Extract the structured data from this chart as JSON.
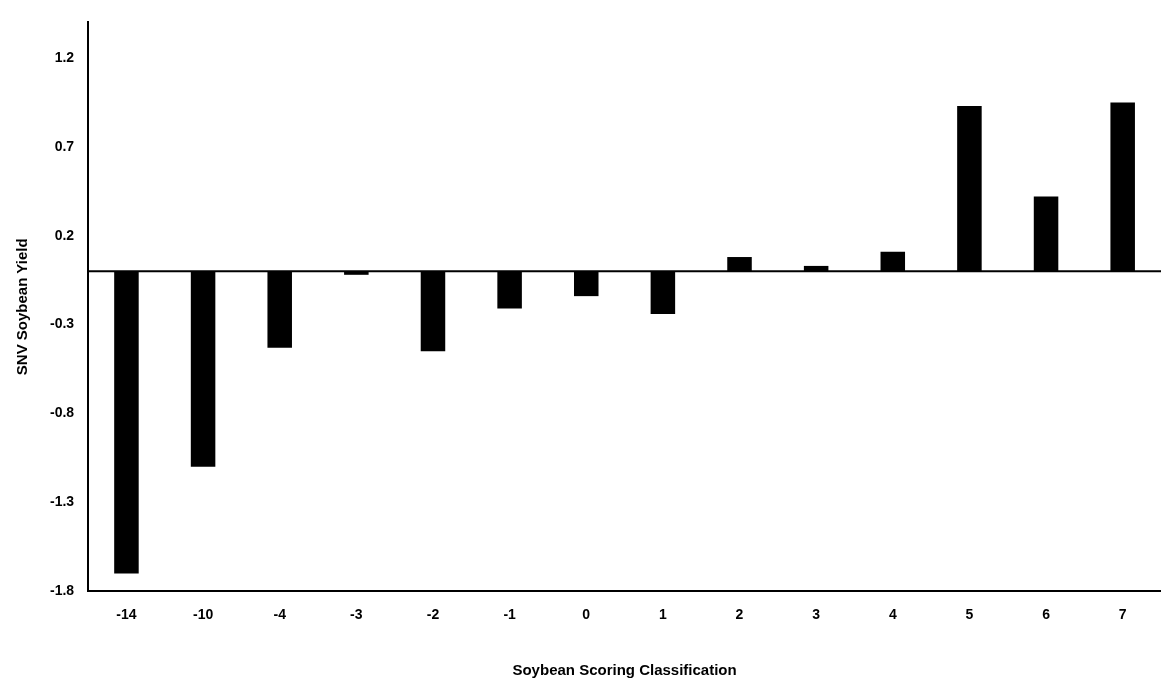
{
  "chart_data": {
    "type": "bar",
    "xlabel": "Soybean Scoring Classification",
    "ylabel": "SNV Soybean Yield",
    "categories": [
      "-14",
      "-10",
      "-4",
      "-3",
      "-2",
      "-1",
      "0",
      "1",
      "2",
      "3",
      "4",
      "5",
      "6",
      "7"
    ],
    "values": [
      -1.7,
      -1.1,
      -0.43,
      -0.02,
      -0.45,
      -0.21,
      -0.14,
      -0.24,
      0.08,
      0.03,
      0.11,
      0.93,
      0.42,
      0.95
    ],
    "color": "#000000",
    "ylim": [
      -1.8,
      1.4
    ],
    "yticks": [
      -1.8,
      -1.3,
      -0.8,
      -0.3,
      0.2,
      0.7,
      1.2
    ],
    "ref_lines": [
      {
        "axis": "y",
        "value": 0,
        "color": "#000000"
      }
    ],
    "grid": false,
    "legend": false
  }
}
